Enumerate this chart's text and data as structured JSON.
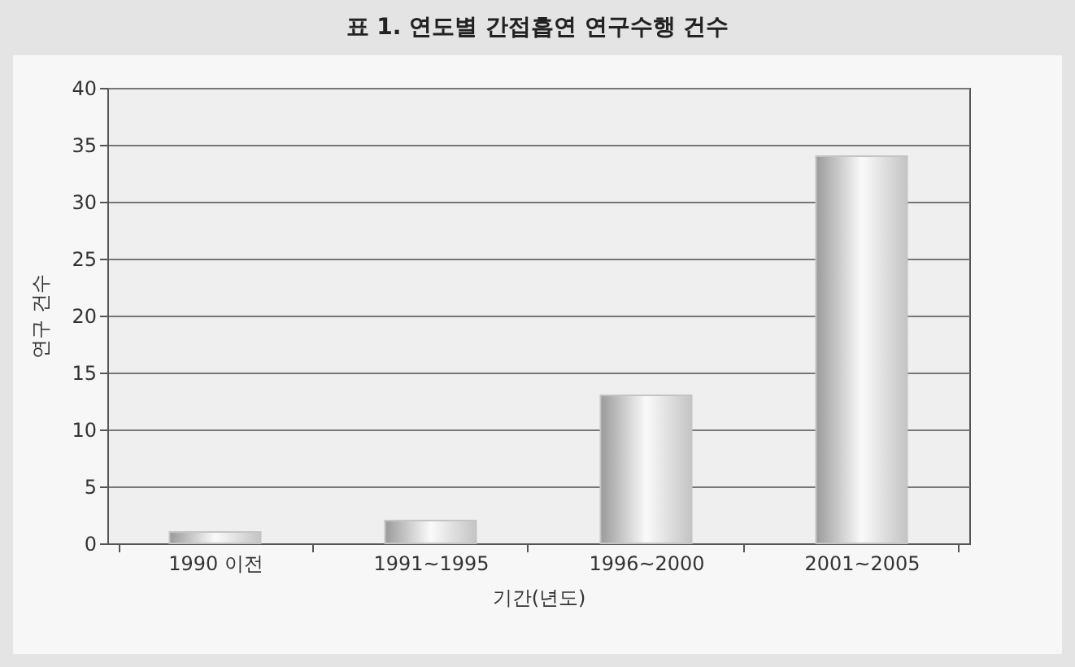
{
  "chart_data": {
    "type": "bar",
    "title": "표 1. 연도별 간접흡연 연구수행 건수",
    "xlabel": "기간(년도)",
    "ylabel": "연구 건수",
    "categories": [
      "1990 이전",
      "1991~1995",
      "1996~2000",
      "2001~2005"
    ],
    "values": [
      1,
      2,
      13,
      34
    ],
    "color": "#c4c4c4",
    "ylim": [
      0,
      40
    ],
    "yticks": [
      0,
      5,
      10,
      15,
      20,
      25,
      30,
      35,
      40
    ],
    "grid": "y"
  }
}
